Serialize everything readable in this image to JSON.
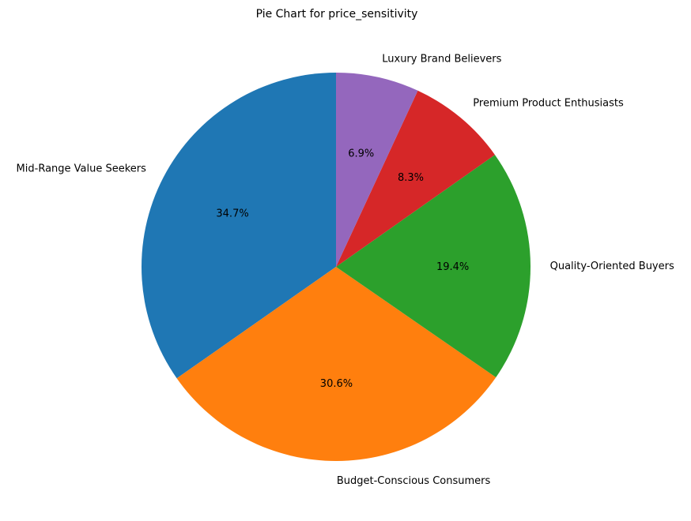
{
  "chart_data": {
    "type": "pie",
    "title": "Pie Chart for price_sensitivity",
    "categories": [
      "Mid-Range Value Seekers",
      "Budget-Conscious Consumers",
      "Quality-Oriented Buyers",
      "Premium Product Enthusiasts",
      "Luxury Brand Believers"
    ],
    "values": [
      34.7,
      30.6,
      19.4,
      8.3,
      6.9
    ],
    "value_labels": [
      "34.7%",
      "30.6%",
      "19.4%",
      "8.3%",
      "6.9%"
    ],
    "colors": [
      "#1f77b4",
      "#ff7f0e",
      "#2ca02c",
      "#d62728",
      "#9467bd"
    ],
    "start_angle_deg": 90,
    "direction": "counterclockwise"
  }
}
